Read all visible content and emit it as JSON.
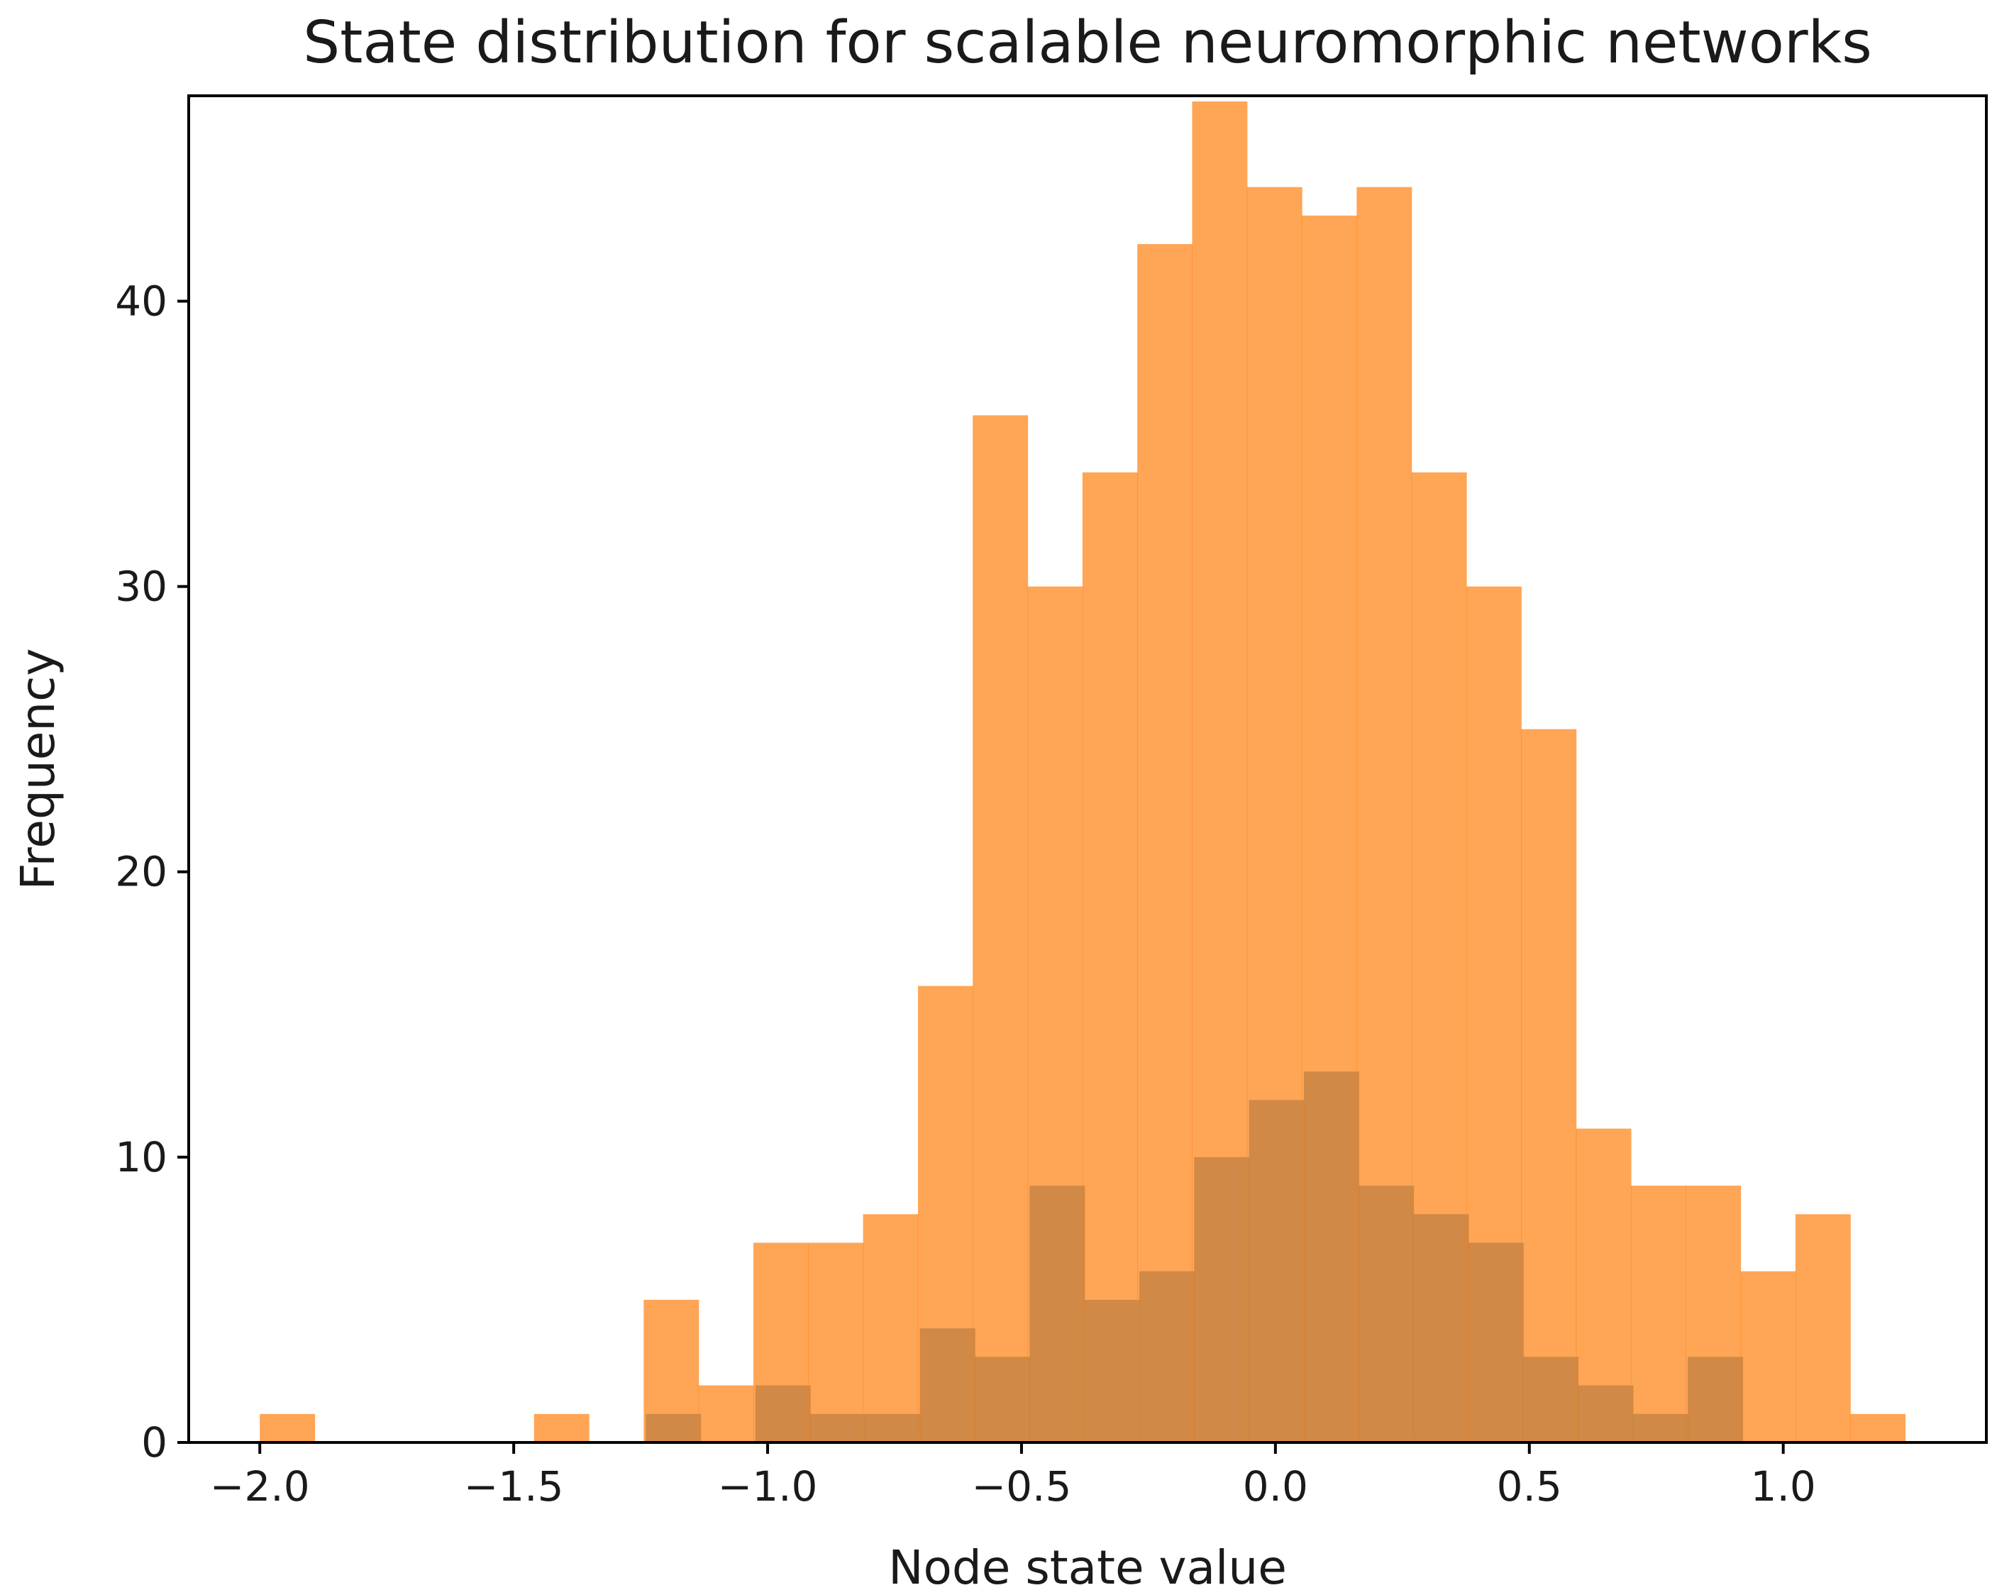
{
  "chart_data": {
    "type": "bar",
    "title": "State distribution for scalable neuromorphic networks",
    "xlabel": "Node state value",
    "ylabel": "Frequency",
    "xlim": [
      -2.14,
      1.4
    ],
    "ylim": [
      0,
      47
    ],
    "grid": false,
    "x_ticks": [
      -2.0,
      -1.5,
      -1.0,
      -0.5,
      0.0,
      0.5,
      1.0
    ],
    "x_tick_labels": [
      "−2.0",
      "−1.5",
      "−1.0",
      "−0.5",
      "0.0",
      "0.5",
      "1.0"
    ],
    "y_ticks": [
      0,
      10,
      20,
      30,
      40
    ],
    "y_tick_labels": [
      "0",
      "10",
      "20",
      "30",
      "40"
    ],
    "series": [
      {
        "color": "#1f77b4",
        "opacity": 0.7,
        "bin_edges": [
          -1.24,
          -1.132,
          -1.024,
          -0.916,
          -0.808,
          -0.7,
          -0.592,
          -0.484,
          -0.376,
          -0.268,
          -0.16,
          -0.052,
          0.056,
          0.164,
          0.272,
          0.38,
          0.488,
          0.596,
          0.704,
          0.812,
          0.92
        ],
        "values": [
          1,
          0,
          2,
          1,
          1,
          4,
          3,
          9,
          5,
          6,
          10,
          12,
          13,
          9,
          8,
          7,
          3,
          2,
          1,
          3
        ]
      },
      {
        "color": "#ff7f0e",
        "opacity": 0.7,
        "bin_edges": [
          -2.0,
          -1.892,
          -1.784,
          -1.676,
          -1.568,
          -1.46,
          -1.352,
          -1.244,
          -1.136,
          -1.028,
          -0.92,
          -0.812,
          -0.704,
          -0.596,
          -0.488,
          -0.38,
          -0.272,
          -0.164,
          -0.056,
          0.052,
          0.16,
          0.268,
          0.376,
          0.484,
          0.592,
          0.7,
          0.808,
          0.916,
          1.024,
          1.132,
          1.24
        ],
        "values": [
          1,
          0,
          0,
          0,
          0,
          1,
          0,
          5,
          2,
          7,
          7,
          8,
          16,
          36,
          30,
          34,
          42,
          47,
          44,
          43,
          44,
          34,
          30,
          25,
          11,
          9,
          9,
          6,
          8,
          1
        ]
      }
    ]
  }
}
